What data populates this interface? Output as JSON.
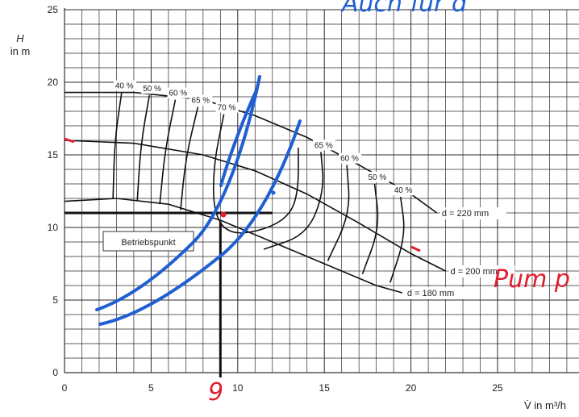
{
  "chart_data": {
    "type": "line",
    "x_axis": {
      "label": "V̇ in m³/h",
      "min": 0,
      "max": 30,
      "ticks": [
        0,
        5,
        10,
        15,
        20,
        25
      ]
    },
    "y_axis": {
      "label_top": "H",
      "label_unit": "in m",
      "min": 0,
      "max": 25,
      "ticks": [
        0,
        5,
        10,
        15,
        20,
        25
      ]
    },
    "grid": true,
    "series": [
      {
        "name": "d = 220 mm",
        "points": [
          [
            0,
            19.3
          ],
          [
            4,
            19.3
          ],
          [
            8,
            18.8
          ],
          [
            11,
            17.7
          ],
          [
            14,
            16.2
          ],
          [
            17,
            14.3
          ],
          [
            20,
            12.3
          ],
          [
            21.5,
            11.0
          ]
        ]
      },
      {
        "name": "d = 200 mm",
        "points": [
          [
            0,
            16.0
          ],
          [
            4,
            15.8
          ],
          [
            8,
            15.0
          ],
          [
            11,
            13.9
          ],
          [
            14,
            12.3
          ],
          [
            17,
            10.3
          ],
          [
            20,
            8.2
          ],
          [
            22,
            7.0
          ]
        ]
      },
      {
        "name": "d = 180 mm",
        "points": [
          [
            0,
            11.8
          ],
          [
            3,
            12.0
          ],
          [
            6,
            11.6
          ],
          [
            9,
            10.5
          ],
          [
            12,
            9.0
          ],
          [
            15,
            7.5
          ],
          [
            18,
            6.0
          ],
          [
            19.5,
            5.5
          ]
        ]
      }
    ],
    "efficiency_contours": [
      {
        "label": "40 %",
        "points": [
          [
            3.3,
            19.3
          ],
          [
            2.9,
            16.0
          ],
          [
            2.8,
            12.0
          ]
        ]
      },
      {
        "label": "50 %",
        "points": [
          [
            4.9,
            19.1
          ],
          [
            4.4,
            15.7
          ],
          [
            4.2,
            11.8
          ]
        ]
      },
      {
        "label": "60 %",
        "points": [
          [
            6.4,
            18.8
          ],
          [
            5.8,
            15.3
          ],
          [
            5.5,
            11.6
          ]
        ]
      },
      {
        "label": "65 %",
        "points": [
          [
            7.7,
            18.3
          ],
          [
            7.0,
            14.8
          ],
          [
            6.7,
            11.2
          ]
        ]
      },
      {
        "label": "70 %",
        "points": [
          [
            9.2,
            17.8
          ],
          [
            8.6,
            14.3
          ],
          [
            8.6,
            11.0
          ],
          [
            9.5,
            9.5
          ],
          [
            11.5,
            9.8
          ],
          [
            13.0,
            10.8
          ],
          [
            13.5,
            12.5
          ],
          [
            13.5,
            15.5
          ]
        ]
      },
      {
        "label": "65 %",
        "points": [
          [
            14.8,
            15.2
          ],
          [
            15.0,
            12.5
          ],
          [
            14.0,
            9.5
          ],
          [
            11.5,
            8.5
          ]
        ]
      },
      {
        "label": "60 %",
        "points": [
          [
            16.3,
            14.3
          ],
          [
            16.5,
            11.0
          ],
          [
            15.2,
            7.7
          ]
        ]
      },
      {
        "label": "50 %",
        "points": [
          [
            17.9,
            13.0
          ],
          [
            18.2,
            10.0
          ],
          [
            17.2,
            6.8
          ]
        ]
      },
      {
        "label": "40 %",
        "points": [
          [
            19.4,
            12.1
          ],
          [
            19.7,
            9.5
          ],
          [
            18.8,
            6.2
          ]
        ]
      }
    ],
    "operating_point": {
      "label": "Betriebspunkt",
      "x": 9,
      "y": 11
    },
    "annotations": {
      "x_mark": "9",
      "pump_text": "Pum p",
      "top_text": "Auch für d"
    }
  }
}
